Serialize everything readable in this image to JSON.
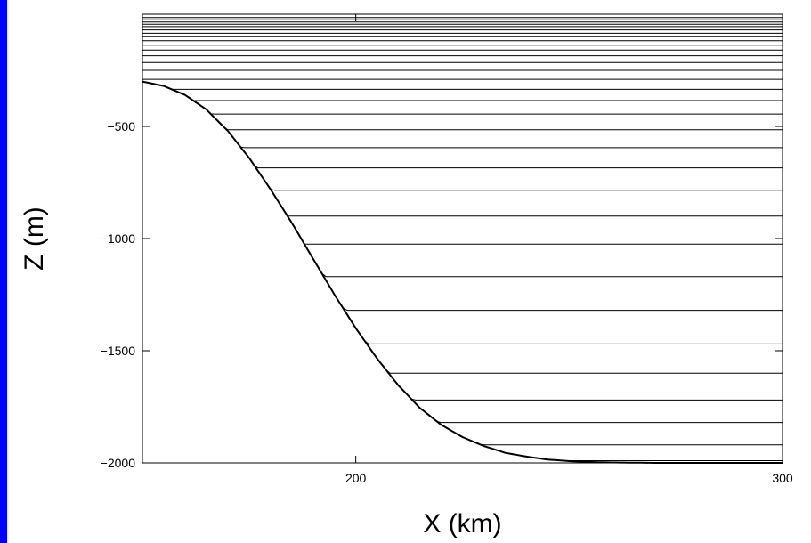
{
  "chart_data": {
    "type": "line",
    "title": "",
    "xlabel": "X (km)",
    "ylabel": "Z (m)",
    "xlim": [
      150,
      300
    ],
    "ylim": [
      -2000,
      0
    ],
    "x_ticks": [
      {
        "value": 200,
        "label": "200"
      },
      {
        "value": 300,
        "label": "300"
      }
    ],
    "y_ticks": [
      {
        "value": -500,
        "label": "−500"
      },
      {
        "value": -1000,
        "label": "−1000"
      },
      {
        "value": -1500,
        "label": "−1500"
      },
      {
        "value": -2000,
        "label": "−2000"
      }
    ],
    "grid": false,
    "legend": "none",
    "line_color": "#000000",
    "frame_color": "#0000ff",
    "description_of_series": "Terrain-following vertical coordinate levels over a continental slope; bottom topography rises from -2000 m offshore to about -300 m at the shelf.",
    "bathymetry": {
      "x": [
        150,
        155,
        160,
        165,
        170,
        175,
        180,
        185,
        190,
        195,
        200,
        205,
        210,
        215,
        220,
        225,
        230,
        235,
        240,
        245,
        250,
        255,
        260,
        265,
        270,
        280,
        290,
        300
      ],
      "depth": [
        -300,
        -320,
        -360,
        -425,
        -520,
        -640,
        -780,
        -930,
        -1090,
        -1250,
        -1400,
        -1535,
        -1655,
        -1755,
        -1830,
        -1885,
        -1925,
        -1955,
        -1972,
        -1985,
        -1992,
        -1996,
        -1998,
        -1999,
        -2000,
        -2000,
        -2000,
        -2000
      ]
    },
    "deep_levels_depth": [
      -15,
      -25,
      -35,
      -45,
      -55,
      -70,
      -85,
      -100,
      -118,
      -138,
      -160,
      -185,
      -215,
      -250,
      -290,
      -335,
      -385,
      -445,
      -515,
      -595,
      -685,
      -785,
      -900,
      -1025,
      -1170,
      -1320,
      -1470,
      -1600,
      -1720,
      -1820,
      -1920,
      -1990
    ]
  }
}
